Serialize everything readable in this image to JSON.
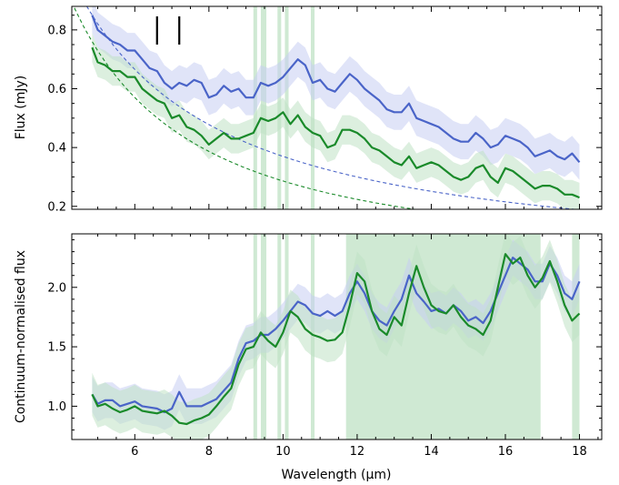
{
  "chart_data": [
    {
      "type": "line",
      "panel": "top",
      "ylabel": "Flux (mJy)",
      "xlabel": "",
      "xlim": [
        4.3,
        18.6
      ],
      "ylim": [
        0.19,
        0.88
      ],
      "xticks": [
        6,
        8,
        10,
        12,
        14,
        16,
        18
      ],
      "yticks": [
        0.2,
        0.4,
        0.6,
        0.8
      ],
      "ytick_labels": [
        "0.2",
        "0.4",
        "0.6",
        "0.8"
      ],
      "markers_x": [
        6.6,
        7.2
      ],
      "series": [
        {
          "color": "#4a64c8",
          "band_color": "#c6cdf2",
          "x": [
            4.85,
            5.0,
            5.2,
            5.4,
            5.6,
            5.8,
            6.0,
            6.2,
            6.4,
            6.6,
            6.8,
            7.0,
            7.2,
            7.4,
            7.6,
            7.8,
            8.0,
            8.2,
            8.4,
            8.6,
            8.8,
            9.0,
            9.2,
            9.4,
            9.6,
            9.8,
            10.0,
            10.2,
            10.4,
            10.6,
            10.8,
            11.0,
            11.2,
            11.4,
            11.6,
            11.8,
            12.0,
            12.2,
            12.4,
            12.6,
            12.8,
            13.0,
            13.2,
            13.4,
            13.6,
            13.8,
            14.0,
            14.2,
            14.4,
            14.6,
            14.8,
            15.0,
            15.2,
            15.4,
            15.6,
            15.8,
            16.0,
            16.2,
            16.4,
            16.6,
            16.8,
            17.0,
            17.2,
            17.4,
            17.6,
            17.8,
            18.0
          ],
          "y": [
            0.85,
            0.8,
            0.78,
            0.76,
            0.75,
            0.73,
            0.73,
            0.7,
            0.67,
            0.66,
            0.62,
            0.6,
            0.62,
            0.61,
            0.63,
            0.62,
            0.57,
            0.58,
            0.61,
            0.59,
            0.6,
            0.57,
            0.57,
            0.62,
            0.61,
            0.62,
            0.64,
            0.67,
            0.7,
            0.68,
            0.62,
            0.63,
            0.6,
            0.59,
            0.62,
            0.65,
            0.63,
            0.6,
            0.58,
            0.56,
            0.53,
            0.52,
            0.52,
            0.55,
            0.5,
            0.49,
            0.48,
            0.47,
            0.45,
            0.43,
            0.42,
            0.42,
            0.45,
            0.43,
            0.4,
            0.41,
            0.44,
            0.43,
            0.42,
            0.4,
            0.37,
            0.38,
            0.39,
            0.37,
            0.36,
            0.38,
            0.35
          ],
          "err": 0.06
        },
        {
          "color": "#1a8a2a",
          "band_color": "#bfe2c4",
          "x": [
            4.85,
            5.0,
            5.2,
            5.4,
            5.6,
            5.8,
            6.0,
            6.2,
            6.4,
            6.6,
            6.8,
            7.0,
            7.2,
            7.4,
            7.6,
            7.8,
            8.0,
            8.2,
            8.4,
            8.6,
            8.8,
            9.0,
            9.2,
            9.4,
            9.6,
            9.8,
            10.0,
            10.2,
            10.4,
            10.6,
            10.8,
            11.0,
            11.2,
            11.4,
            11.6,
            11.8,
            12.0,
            12.2,
            12.4,
            12.6,
            12.8,
            13.0,
            13.2,
            13.4,
            13.6,
            13.8,
            14.0,
            14.2,
            14.4,
            14.6,
            14.8,
            15.0,
            15.2,
            15.4,
            15.6,
            15.8,
            16.0,
            16.2,
            16.4,
            16.6,
            16.8,
            17.0,
            17.2,
            17.4,
            17.6,
            17.8,
            18.0
          ],
          "y": [
            0.74,
            0.69,
            0.68,
            0.66,
            0.66,
            0.64,
            0.64,
            0.6,
            0.58,
            0.56,
            0.55,
            0.5,
            0.51,
            0.47,
            0.46,
            0.44,
            0.41,
            0.43,
            0.45,
            0.43,
            0.43,
            0.44,
            0.45,
            0.5,
            0.49,
            0.5,
            0.52,
            0.48,
            0.51,
            0.47,
            0.45,
            0.44,
            0.4,
            0.41,
            0.46,
            0.46,
            0.45,
            0.43,
            0.4,
            0.39,
            0.37,
            0.35,
            0.34,
            0.37,
            0.33,
            0.34,
            0.35,
            0.34,
            0.32,
            0.3,
            0.29,
            0.3,
            0.33,
            0.34,
            0.3,
            0.28,
            0.33,
            0.32,
            0.3,
            0.28,
            0.26,
            0.27,
            0.27,
            0.26,
            0.24,
            0.24,
            0.23
          ],
          "err": 0.05
        }
      ],
      "continuum_curves": [
        {
          "color": "#4a64c8",
          "style": "dashed",
          "a": 0.85,
          "p": 1.15,
          "x0": 4.3,
          "xmax": 18.0
        },
        {
          "color": "#1a8a2a",
          "style": "dashed",
          "a": 0.76,
          "p": 1.35,
          "x0": 4.3,
          "xmax": 18.0
        }
      ],
      "shaded_columns_x": [
        [
          9.2,
          9.3
        ],
        [
          9.4,
          9.55
        ],
        [
          9.85,
          9.95
        ],
        [
          10.05,
          10.15
        ],
        [
          10.75,
          10.85
        ]
      ]
    },
    {
      "type": "line",
      "panel": "bottom",
      "ylabel": "Continuum-normalised flux",
      "xlabel": "Wavelength (μm)",
      "xlim": [
        4.3,
        18.6
      ],
      "ylim": [
        0.72,
        2.45
      ],
      "xticks": [
        6,
        8,
        10,
        12,
        14,
        16,
        18
      ],
      "xtick_labels": [
        "6",
        "8",
        "10",
        "12",
        "14",
        "16",
        "18"
      ],
      "yticks": [
        1.0,
        1.5,
        2.0
      ],
      "ytick_labels": [
        "1.0",
        "1.5",
        "2.0"
      ],
      "series": [
        {
          "color": "#4a64c8",
          "band_color": "#c6cdf2",
          "x": [
            4.85,
            5.0,
            5.2,
            5.4,
            5.6,
            5.8,
            6.0,
            6.2,
            6.4,
            6.6,
            6.8,
            7.0,
            7.2,
            7.4,
            7.6,
            7.8,
            8.0,
            8.2,
            8.4,
            8.6,
            8.8,
            9.0,
            9.2,
            9.4,
            9.6,
            9.8,
            10.0,
            10.2,
            10.4,
            10.6,
            10.8,
            11.0,
            11.2,
            11.4,
            11.6,
            11.8,
            12.0,
            12.2,
            12.4,
            12.6,
            12.8,
            13.0,
            13.2,
            13.4,
            13.6,
            13.8,
            14.0,
            14.2,
            14.4,
            14.6,
            14.8,
            15.0,
            15.2,
            15.4,
            15.6,
            15.8,
            16.0,
            16.2,
            16.4,
            16.6,
            16.8,
            17.0,
            17.2,
            17.4,
            17.6,
            17.8,
            18.0
          ],
          "y": [
            1.1,
            1.02,
            1.05,
            1.05,
            1.0,
            1.02,
            1.04,
            1.0,
            0.99,
            0.98,
            0.95,
            0.98,
            1.12,
            1.0,
            1.0,
            1.0,
            1.03,
            1.06,
            1.13,
            1.2,
            1.4,
            1.53,
            1.55,
            1.6,
            1.6,
            1.65,
            1.72,
            1.8,
            1.88,
            1.85,
            1.78,
            1.76,
            1.8,
            1.76,
            1.8,
            1.95,
            2.05,
            1.95,
            1.8,
            1.72,
            1.68,
            1.8,
            1.9,
            2.1,
            1.95,
            1.88,
            1.8,
            1.82,
            1.78,
            1.85,
            1.8,
            1.72,
            1.75,
            1.7,
            1.8,
            1.95,
            2.1,
            2.25,
            2.2,
            2.15,
            2.05,
            2.05,
            2.2,
            2.1,
            1.95,
            1.9,
            2.05
          ],
          "err": 0.15
        },
        {
          "color": "#1a8a2a",
          "band_color": "#bfe2c4",
          "x": [
            4.85,
            5.0,
            5.2,
            5.4,
            5.6,
            5.8,
            6.0,
            6.2,
            6.4,
            6.6,
            6.8,
            7.0,
            7.2,
            7.4,
            7.6,
            7.8,
            8.0,
            8.2,
            8.4,
            8.6,
            8.8,
            9.0,
            9.2,
            9.4,
            9.6,
            9.8,
            10.0,
            10.2,
            10.4,
            10.6,
            10.8,
            11.0,
            11.2,
            11.4,
            11.6,
            11.8,
            12.0,
            12.2,
            12.4,
            12.6,
            12.8,
            13.0,
            13.2,
            13.4,
            13.6,
            13.8,
            14.0,
            14.2,
            14.4,
            14.6,
            14.8,
            15.0,
            15.2,
            15.4,
            15.6,
            15.8,
            16.0,
            16.2,
            16.4,
            16.6,
            16.8,
            17.0,
            17.2,
            17.4,
            17.6,
            17.8,
            18.0
          ],
          "y": [
            1.1,
            1.0,
            1.02,
            0.98,
            0.95,
            0.97,
            1.0,
            0.96,
            0.95,
            0.94,
            0.96,
            0.92,
            0.86,
            0.85,
            0.88,
            0.9,
            0.93,
            1.0,
            1.08,
            1.15,
            1.35,
            1.48,
            1.5,
            1.62,
            1.55,
            1.5,
            1.62,
            1.8,
            1.75,
            1.65,
            1.6,
            1.58,
            1.55,
            1.56,
            1.62,
            1.85,
            2.12,
            2.05,
            1.8,
            1.65,
            1.6,
            1.75,
            1.68,
            1.95,
            2.18,
            2.0,
            1.85,
            1.8,
            1.78,
            1.85,
            1.75,
            1.68,
            1.65,
            1.6,
            1.72,
            2.0,
            2.28,
            2.2,
            2.25,
            2.1,
            2.0,
            2.08,
            2.22,
            2.05,
            1.85,
            1.72,
            1.78
          ],
          "err": 0.18
        }
      ],
      "shaded_columns_x": [
        [
          9.2,
          9.3
        ],
        [
          9.4,
          9.55
        ],
        [
          9.85,
          9.95
        ],
        [
          10.05,
          10.15
        ],
        [
          10.75,
          10.85
        ],
        [
          11.7,
          16.95
        ],
        [
          17.8,
          18.0
        ]
      ]
    }
  ]
}
